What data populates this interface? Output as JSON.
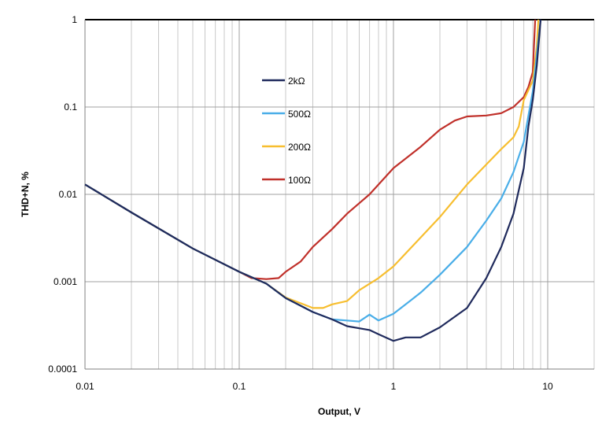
{
  "chart_data": {
    "type": "line",
    "xlabel": "Output, V",
    "ylabel": "THD+N, %",
    "xscale": "log",
    "yscale": "log",
    "xlim": [
      0.01,
      20
    ],
    "ylim": [
      0.0001,
      1
    ],
    "xticks": [
      "0.01",
      "0.1",
      "1",
      "10"
    ],
    "yticks": [
      "0.0001",
      "0.001",
      "0.01",
      "0.1",
      "1"
    ],
    "grid": true,
    "legend_placement": "top-center",
    "series": [
      {
        "name": "2kΩ",
        "color": "#1f2a5c",
        "points": [
          [
            0.01,
            0.013
          ],
          [
            0.02,
            0.0062
          ],
          [
            0.05,
            0.0024
          ],
          [
            0.1,
            0.0013
          ],
          [
            0.15,
            0.00095
          ],
          [
            0.2,
            0.00065
          ],
          [
            0.3,
            0.00045
          ],
          [
            0.4,
            0.00037
          ],
          [
            0.5,
            0.00031
          ],
          [
            0.7,
            0.00028
          ],
          [
            0.8,
            0.00025
          ],
          [
            1,
            0.00021
          ],
          [
            1.2,
            0.00023
          ],
          [
            1.5,
            0.00023
          ],
          [
            2,
            0.0003
          ],
          [
            3,
            0.0005
          ],
          [
            4,
            0.0011
          ],
          [
            5,
            0.0025
          ],
          [
            6,
            0.006
          ],
          [
            7,
            0.02
          ],
          [
            7.5,
            0.06
          ],
          [
            8,
            0.12
          ],
          [
            8.5,
            0.3
          ],
          [
            9,
            1
          ]
        ]
      },
      {
        "name": "500Ω",
        "color": "#4aaee8",
        "points": [
          [
            0.01,
            0.013
          ],
          [
            0.02,
            0.0062
          ],
          [
            0.05,
            0.0024
          ],
          [
            0.1,
            0.0013
          ],
          [
            0.15,
            0.00095
          ],
          [
            0.2,
            0.00065
          ],
          [
            0.3,
            0.00045
          ],
          [
            0.4,
            0.00037
          ],
          [
            0.5,
            0.00036
          ],
          [
            0.6,
            0.00035
          ],
          [
            0.7,
            0.00042
          ],
          [
            0.8,
            0.00036
          ],
          [
            1,
            0.00043
          ],
          [
            1.2,
            0.00055
          ],
          [
            1.5,
            0.00075
          ],
          [
            2,
            0.0012
          ],
          [
            3,
            0.0025
          ],
          [
            4,
            0.005
          ],
          [
            5,
            0.009
          ],
          [
            6,
            0.018
          ],
          [
            7,
            0.04
          ],
          [
            7.5,
            0.08
          ],
          [
            8,
            0.15
          ],
          [
            8.5,
            0.4
          ],
          [
            9,
            1
          ]
        ]
      },
      {
        "name": "200Ω",
        "color": "#f7be2f",
        "points": [
          [
            0.01,
            0.013
          ],
          [
            0.02,
            0.0062
          ],
          [
            0.05,
            0.0024
          ],
          [
            0.1,
            0.0013
          ],
          [
            0.15,
            0.00095
          ],
          [
            0.2,
            0.00066
          ],
          [
            0.3,
            0.0005
          ],
          [
            0.35,
            0.0005
          ],
          [
            0.4,
            0.00055
          ],
          [
            0.5,
            0.0006
          ],
          [
            0.6,
            0.0008
          ],
          [
            0.8,
            0.0011
          ],
          [
            1,
            0.0015
          ],
          [
            1.5,
            0.0032
          ],
          [
            2,
            0.0055
          ],
          [
            3,
            0.013
          ],
          [
            4,
            0.022
          ],
          [
            5,
            0.033
          ],
          [
            6,
            0.045
          ],
          [
            6.5,
            0.06
          ],
          [
            7,
            0.12
          ],
          [
            8,
            0.2
          ],
          [
            8.5,
            0.5
          ],
          [
            8.7,
            1
          ]
        ]
      },
      {
        "name": "100Ω",
        "color": "#c0302a",
        "points": [
          [
            0.01,
            0.013
          ],
          [
            0.02,
            0.0062
          ],
          [
            0.05,
            0.0024
          ],
          [
            0.1,
            0.0013
          ],
          [
            0.12,
            0.0011
          ],
          [
            0.15,
            0.00107
          ],
          [
            0.18,
            0.0011
          ],
          [
            0.2,
            0.0013
          ],
          [
            0.25,
            0.0017
          ],
          [
            0.3,
            0.0025
          ],
          [
            0.4,
            0.004
          ],
          [
            0.5,
            0.006
          ],
          [
            0.7,
            0.01
          ],
          [
            1,
            0.02
          ],
          [
            1.5,
            0.035
          ],
          [
            2,
            0.055
          ],
          [
            2.5,
            0.07
          ],
          [
            3,
            0.078
          ],
          [
            4,
            0.08
          ],
          [
            5,
            0.085
          ],
          [
            6,
            0.1
          ],
          [
            7,
            0.13
          ],
          [
            7.5,
            0.17
          ],
          [
            8,
            0.25
          ],
          [
            8.3,
            1
          ]
        ]
      }
    ]
  }
}
